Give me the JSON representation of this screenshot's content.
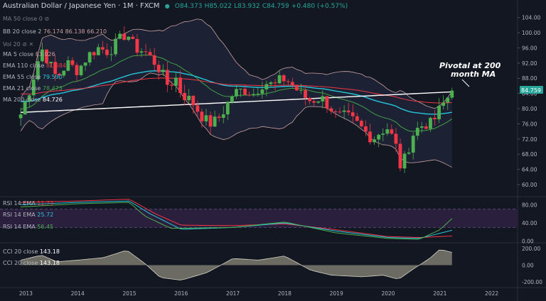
{
  "header": {
    "symbol": "Australian Dollar / Japanese Yen",
    "interval": "1M",
    "exchange": "FXCM",
    "open": "O84.373",
    "high": "H85.022",
    "low": "L83.932",
    "close": "C84.759",
    "change": "+0.480 (+0.57%)"
  },
  "indicators": {
    "ma50": {
      "label": "MA 50 close 0",
      "value": ""
    },
    "bb": {
      "label": "BB 20 close 2",
      "values": [
        "76.174",
        "86.138",
        "66.210"
      ]
    },
    "vol": {
      "label": "Vol 20",
      "value": ""
    },
    "ma5": {
      "label": "MA 5 close",
      "value": "83.026"
    },
    "ema110": {
      "label": "EMA 110 close",
      "value": "81.684"
    },
    "ema55": {
      "label": "EMA 55 close",
      "value": "79.590"
    },
    "ema21": {
      "label": "EMA 21 close",
      "value": "78.473"
    },
    "ma200": {
      "label": "MA 200 close",
      "value": "84.726"
    },
    "rsi_labels": [
      {
        "label": "RSI 14 EMA",
        "value": "11.73",
        "color": "#f23645"
      },
      {
        "label": "RSI 14 EMA",
        "value": "25.72",
        "color": "#26c6da"
      },
      {
        "label": "RSI 14 EMA",
        "value": "56.45",
        "color": "#4caf50"
      }
    ],
    "cci_labels": [
      {
        "label": "CCI 20 close",
        "value": "143.18"
      },
      {
        "label": "CCI 20 close",
        "value": "143.18"
      }
    ]
  },
  "annotation": {
    "line1": "Pivotal at 200",
    "line2": "month MA"
  },
  "last_price_badge": "84.759",
  "colors": {
    "bg": "#131722",
    "up": "#4caf50",
    "down": "#f23645",
    "ema21": "#43a047",
    "ema55": "#26c6da",
    "ema110": "#f23645",
    "ma200": "#ffffff",
    "bb": "#c9a0a0",
    "bbfill": "#1e2435",
    "rsi_band": "#2a1f3d",
    "cci_fill": "#7b7a6e"
  },
  "chart_data": [
    {
      "type": "candlestick",
      "title": "Australian Dollar / Japanese Yen · 1M · FXCM",
      "x_ticks": [
        "2013",
        "2014",
        "2015",
        "2016",
        "2017",
        "2018",
        "2019",
        "2020",
        "2021",
        "2022"
      ],
      "y_ticks": [
        "104.00",
        "100.00",
        "96.00",
        "92.00",
        "88.00",
        "84.00",
        "80.00",
        "76.00",
        "72.00",
        "68.00",
        "64.00",
        "60.00"
      ],
      "ylim": [
        57,
        106
      ],
      "xlim": [
        2012.5,
        2022.5
      ],
      "ohlc_close_path": [
        [
          2012.9,
          78.5
        ],
        [
          2013.1,
          86
        ],
        [
          2013.3,
          96
        ],
        [
          2013.45,
          92
        ],
        [
          2013.6,
          88
        ],
        [
          2013.8,
          92
        ],
        [
          2014.0,
          90
        ],
        [
          2014.2,
          94
        ],
        [
          2014.4,
          96
        ],
        [
          2014.6,
          95
        ],
        [
          2014.8,
          98
        ],
        [
          2014.95,
          100
        ],
        [
          2015.1,
          96
        ],
        [
          2015.3,
          95
        ],
        [
          2015.5,
          92
        ],
        [
          2015.6,
          90
        ],
        [
          2015.75,
          86
        ],
        [
          2015.9,
          88
        ],
        [
          2016.0,
          84
        ],
        [
          2016.2,
          82
        ],
        [
          2016.4,
          78
        ],
        [
          2016.55,
          76
        ],
        [
          2016.7,
          77
        ],
        [
          2016.85,
          80
        ],
        [
          2017.0,
          84
        ],
        [
          2017.2,
          85
        ],
        [
          2017.4,
          84
        ],
        [
          2017.6,
          87
        ],
        [
          2017.8,
          86
        ],
        [
          2017.95,
          88
        ],
        [
          2018.1,
          87
        ],
        [
          2018.3,
          84
        ],
        [
          2018.5,
          82
        ],
        [
          2018.7,
          83
        ],
        [
          2018.9,
          80
        ],
        [
          2019.0,
          78
        ],
        [
          2019.2,
          78
        ],
        [
          2019.4,
          76
        ],
        [
          2019.55,
          74
        ],
        [
          2019.7,
          72
        ],
        [
          2019.85,
          74
        ],
        [
          2020.0,
          75
        ],
        [
          2020.15,
          70
        ],
        [
          2020.25,
          64
        ],
        [
          2020.35,
          68
        ],
        [
          2020.5,
          74
        ],
        [
          2020.7,
          76
        ],
        [
          2020.85,
          76
        ],
        [
          2021.0,
          80
        ],
        [
          2021.1,
          82
        ],
        [
          2021.2,
          84
        ],
        [
          2021.3,
          84.759
        ]
      ],
      "last_value": 84.759
    },
    {
      "type": "line",
      "title": "RSI 14 EMA",
      "y_ticks": [
        "80.00",
        "40.00",
        "0.00"
      ],
      "ylim": [
        -2,
        96
      ],
      "band": [
        30,
        70
      ],
      "series": [
        {
          "values": [
            [
              2012.9,
              85
            ],
            [
              2014,
              88
            ],
            [
              2015,
              92
            ],
            [
              2015.5,
              60
            ],
            [
              2016,
              35
            ],
            [
              2017,
              34
            ],
            [
              2018,
              38
            ],
            [
              2019,
              25
            ],
            [
              2020,
              10
            ],
            [
              2020.6,
              8
            ],
            [
              2021.3,
              11.73
            ]
          ],
          "color": "#f23645"
        },
        {
          "values": [
            [
              2012.9,
              80
            ],
            [
              2014,
              85
            ],
            [
              2015,
              88
            ],
            [
              2015.4,
              60
            ],
            [
              2016,
              26
            ],
            [
              2017,
              30
            ],
            [
              2018,
              40
            ],
            [
              2019,
              22
            ],
            [
              2020,
              8
            ],
            [
              2020.6,
              6
            ],
            [
              2021.3,
              25.72
            ]
          ],
          "color": "#26c6da"
        },
        {
          "values": [
            [
              2012.9,
              75
            ],
            [
              2014,
              82
            ],
            [
              2015,
              85
            ],
            [
              2015.3,
              55
            ],
            [
              2015.8,
              28
            ],
            [
              2017,
              30
            ],
            [
              2018,
              42
            ],
            [
              2019,
              18
            ],
            [
              2020,
              6
            ],
            [
              2020.6,
              4
            ],
            [
              2021.0,
              25
            ],
            [
              2021.3,
              56.45
            ]
          ],
          "color": "#4caf50"
        }
      ]
    },
    {
      "type": "area",
      "title": "CCI 20 close",
      "y_ticks": [
        "200.00",
        "0.00",
        "-200.00"
      ],
      "ylim": [
        -260,
        260
      ],
      "values": [
        [
          2012.9,
          60
        ],
        [
          2013.3,
          120
        ],
        [
          2013.6,
          40
        ],
        [
          2014,
          60
        ],
        [
          2014.5,
          90
        ],
        [
          2014.95,
          180
        ],
        [
          2015.3,
          20
        ],
        [
          2015.6,
          -150
        ],
        [
          2016,
          -180
        ],
        [
          2016.5,
          -90
        ],
        [
          2017,
          80
        ],
        [
          2017.5,
          60
        ],
        [
          2018,
          110
        ],
        [
          2018.5,
          -60
        ],
        [
          2018.9,
          -120
        ],
        [
          2019.5,
          -140
        ],
        [
          2019.9,
          -120
        ],
        [
          2020.2,
          -170
        ],
        [
          2020.5,
          -40
        ],
        [
          2020.8,
          80
        ],
        [
          2021.0,
          190
        ],
        [
          2021.3,
          143.18
        ]
      ],
      "color": "#7b7a6e"
    }
  ]
}
